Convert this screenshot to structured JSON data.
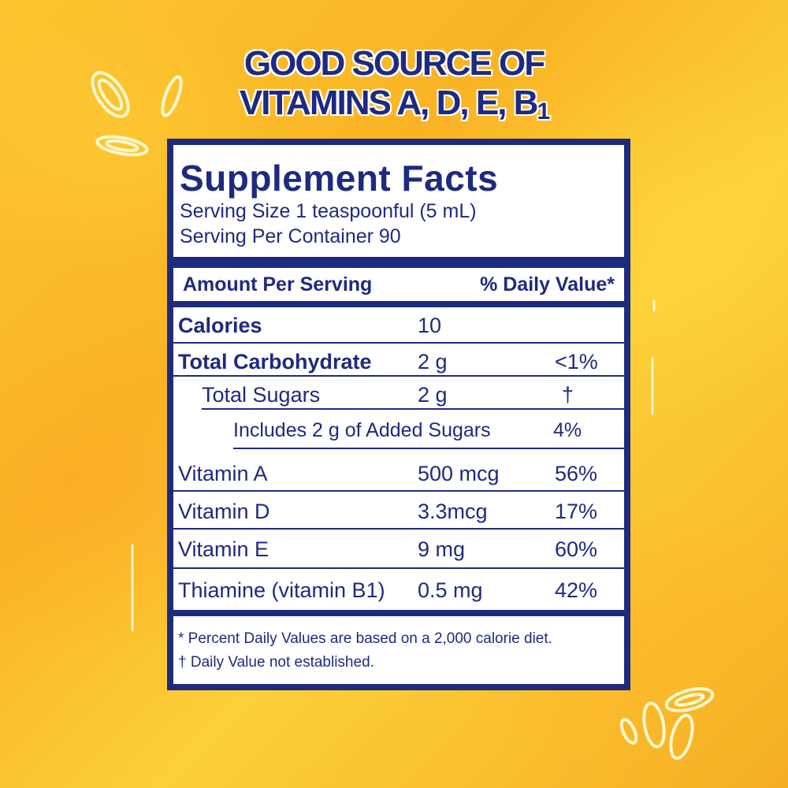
{
  "headline": {
    "line1": "GOOD SOURCE OF",
    "line2": "VITAMINS A, D, E, B",
    "line2_sub": "1"
  },
  "facts": {
    "title": "Supplement Facts",
    "serving_size": "Serving Size 1 teaspoonful (5 mL)",
    "servings_per_container": "Serving Per Container 90",
    "header_amount": "Amount Per Serving",
    "header_dv": "% Daily Value*",
    "rows": [
      {
        "name": "Calories",
        "amount": "10",
        "dv": ""
      },
      {
        "name": "Total Carbohydrate",
        "amount": "2 g",
        "dv": "<1%"
      },
      {
        "name": "Total Sugars",
        "amount": "2 g",
        "dv": "†"
      },
      {
        "name": "Includes  2 g of Added Sugars",
        "amount": "",
        "dv": "4%"
      },
      {
        "name": "Vitamin A",
        "amount": "500 mcg",
        "dv": "56%"
      },
      {
        "name": "Vitamin D",
        "amount": "3.3mcg",
        "dv": "17%"
      },
      {
        "name": "Vitamin E",
        "amount": "9 mg",
        "dv": "60%"
      },
      {
        "name": "Thiamine (vitamin B1)",
        "amount": "0.5 mg",
        "dv": "42%"
      }
    ],
    "footnote1": "* Percent Daily Values are based on a 2,000 calorie diet.",
    "footnote2": "† Daily Value  not established."
  },
  "colors": {
    "navy": "#1e2a80",
    "background": "#f9b425"
  },
  "icons": [
    "droplet-splash-icon"
  ]
}
